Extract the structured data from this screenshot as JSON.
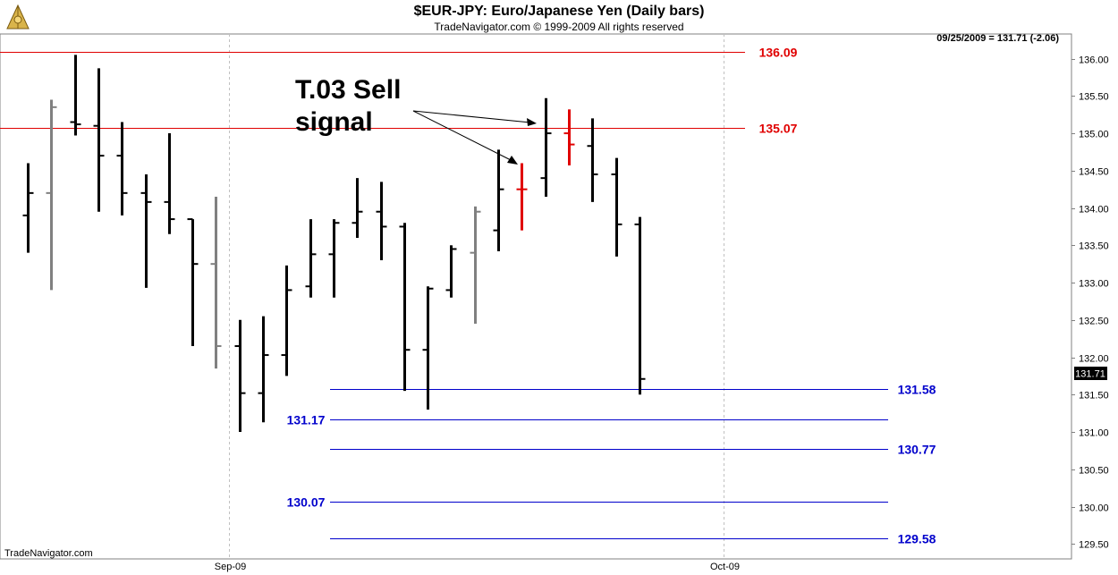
{
  "header": {
    "title": "$EUR-JPY:  Euro/Japanese Yen  (Daily bars)",
    "copyright": "TradeNavigator.com © 1999-2009 All rights reserved"
  },
  "readout": "09/25/2009 = 131.71 (-2.06)",
  "last_price_label": "131.71",
  "watermark": "TradeNavigator.com",
  "annotation": {
    "line1": "T.03 Sell",
    "line2": "signal"
  },
  "colors": {
    "bar_black": "#000000",
    "bar_gray": "#808080",
    "bar_red": "#e00000",
    "level_red": "#e00000",
    "level_blue": "#0000cc",
    "grid": "#c0c0c0",
    "axis": "#808080"
  },
  "logo_icon": "sextant-icon",
  "chart_data": {
    "type": "ohlc",
    "title": "$EUR-JPY:  Euro/Japanese Yen  (Daily bars)",
    "xlabel": "",
    "ylabel": "",
    "ylim": [
      129.3,
      136.33
    ],
    "yticks": [
      129.5,
      130.0,
      130.5,
      131.0,
      131.5,
      132.0,
      132.5,
      133.0,
      133.5,
      134.0,
      134.5,
      135.0,
      135.5,
      136.0
    ],
    "ytick_labels": [
      "129.50",
      "130.00",
      "130.50",
      "131.00",
      "131.50",
      "132.00",
      "132.50",
      "133.00",
      "133.50",
      "134.00",
      "134.50",
      "135.00",
      "135.50",
      "136.00"
    ],
    "x_labels": [
      {
        "label": "Sep-09",
        "after_bar": 8
      },
      {
        "label": "Oct-09",
        "after_bar": 29
      }
    ],
    "bars": [
      {
        "o": 133.9,
        "h": 134.6,
        "l": 133.4,
        "c": 134.2,
        "color": "black"
      },
      {
        "o": 134.2,
        "h": 135.45,
        "l": 132.9,
        "c": 135.35,
        "color": "gray"
      },
      {
        "o": 135.15,
        "h": 136.05,
        "l": 134.97,
        "c": 135.12,
        "color": "black"
      },
      {
        "o": 135.1,
        "h": 135.87,
        "l": 133.95,
        "c": 134.7,
        "color": "black"
      },
      {
        "o": 134.7,
        "h": 135.15,
        "l": 133.9,
        "c": 134.2,
        "color": "black"
      },
      {
        "o": 134.2,
        "h": 134.45,
        "l": 132.93,
        "c": 134.08,
        "color": "black"
      },
      {
        "o": 134.08,
        "h": 135.0,
        "l": 133.65,
        "c": 133.85,
        "color": "black"
      },
      {
        "o": 133.85,
        "h": 133.85,
        "l": 132.15,
        "c": 133.25,
        "color": "black"
      },
      {
        "o": 133.25,
        "h": 134.15,
        "l": 131.85,
        "c": 132.15,
        "color": "gray"
      },
      {
        "o": 132.15,
        "h": 132.5,
        "l": 131.0,
        "c": 131.52,
        "color": "black"
      },
      {
        "o": 131.52,
        "h": 132.55,
        "l": 131.13,
        "c": 132.03,
        "color": "black"
      },
      {
        "o": 132.03,
        "h": 133.23,
        "l": 131.75,
        "c": 132.9,
        "color": "black"
      },
      {
        "o": 132.95,
        "h": 133.85,
        "l": 132.8,
        "c": 133.38,
        "color": "black"
      },
      {
        "o": 133.38,
        "h": 133.85,
        "l": 132.8,
        "c": 133.8,
        "color": "black"
      },
      {
        "o": 133.8,
        "h": 134.4,
        "l": 133.6,
        "c": 133.95,
        "color": "black"
      },
      {
        "o": 133.95,
        "h": 134.35,
        "l": 133.3,
        "c": 133.75,
        "color": "black"
      },
      {
        "o": 133.75,
        "h": 133.8,
        "l": 131.55,
        "c": 132.1,
        "color": "black"
      },
      {
        "o": 132.1,
        "h": 132.95,
        "l": 131.3,
        "c": 132.92,
        "color": "black"
      },
      {
        "o": 132.9,
        "h": 133.5,
        "l": 132.8,
        "c": 133.45,
        "color": "black"
      },
      {
        "o": 133.4,
        "h": 134.02,
        "l": 132.45,
        "c": 133.95,
        "color": "gray"
      },
      {
        "o": 133.7,
        "h": 134.78,
        "l": 133.42,
        "c": 134.25,
        "color": "black"
      },
      {
        "o": 134.25,
        "h": 134.6,
        "l": 133.7,
        "c": 134.25,
        "color": "red"
      },
      {
        "o": 134.4,
        "h": 135.47,
        "l": 134.15,
        "c": 135.0,
        "color": "black"
      },
      {
        "o": 135.0,
        "h": 135.32,
        "l": 134.57,
        "c": 134.85,
        "color": "red"
      },
      {
        "o": 134.83,
        "h": 135.2,
        "l": 134.08,
        "c": 134.45,
        "color": "black"
      },
      {
        "o": 134.45,
        "h": 134.67,
        "l": 133.35,
        "c": 133.78,
        "color": "black"
      },
      {
        "o": 133.78,
        "h": 133.88,
        "l": 131.5,
        "c": 131.71,
        "color": "black"
      }
    ],
    "levels": [
      {
        "value": 136.09,
        "label": "136.09",
        "color": "red"
      },
      {
        "value": 135.07,
        "label": "135.07",
        "color": "red"
      },
      {
        "value": 131.58,
        "label": "131.58",
        "color": "blue"
      },
      {
        "value": 131.17,
        "label": "131.17",
        "color": "blue"
      },
      {
        "value": 130.77,
        "label": "130.77",
        "color": "blue"
      },
      {
        "value": 130.07,
        "label": "130.07",
        "color": "blue"
      },
      {
        "value": 129.58,
        "label": "129.58",
        "color": "blue"
      }
    ],
    "grid": "vertical-dashed",
    "legend": "none"
  }
}
